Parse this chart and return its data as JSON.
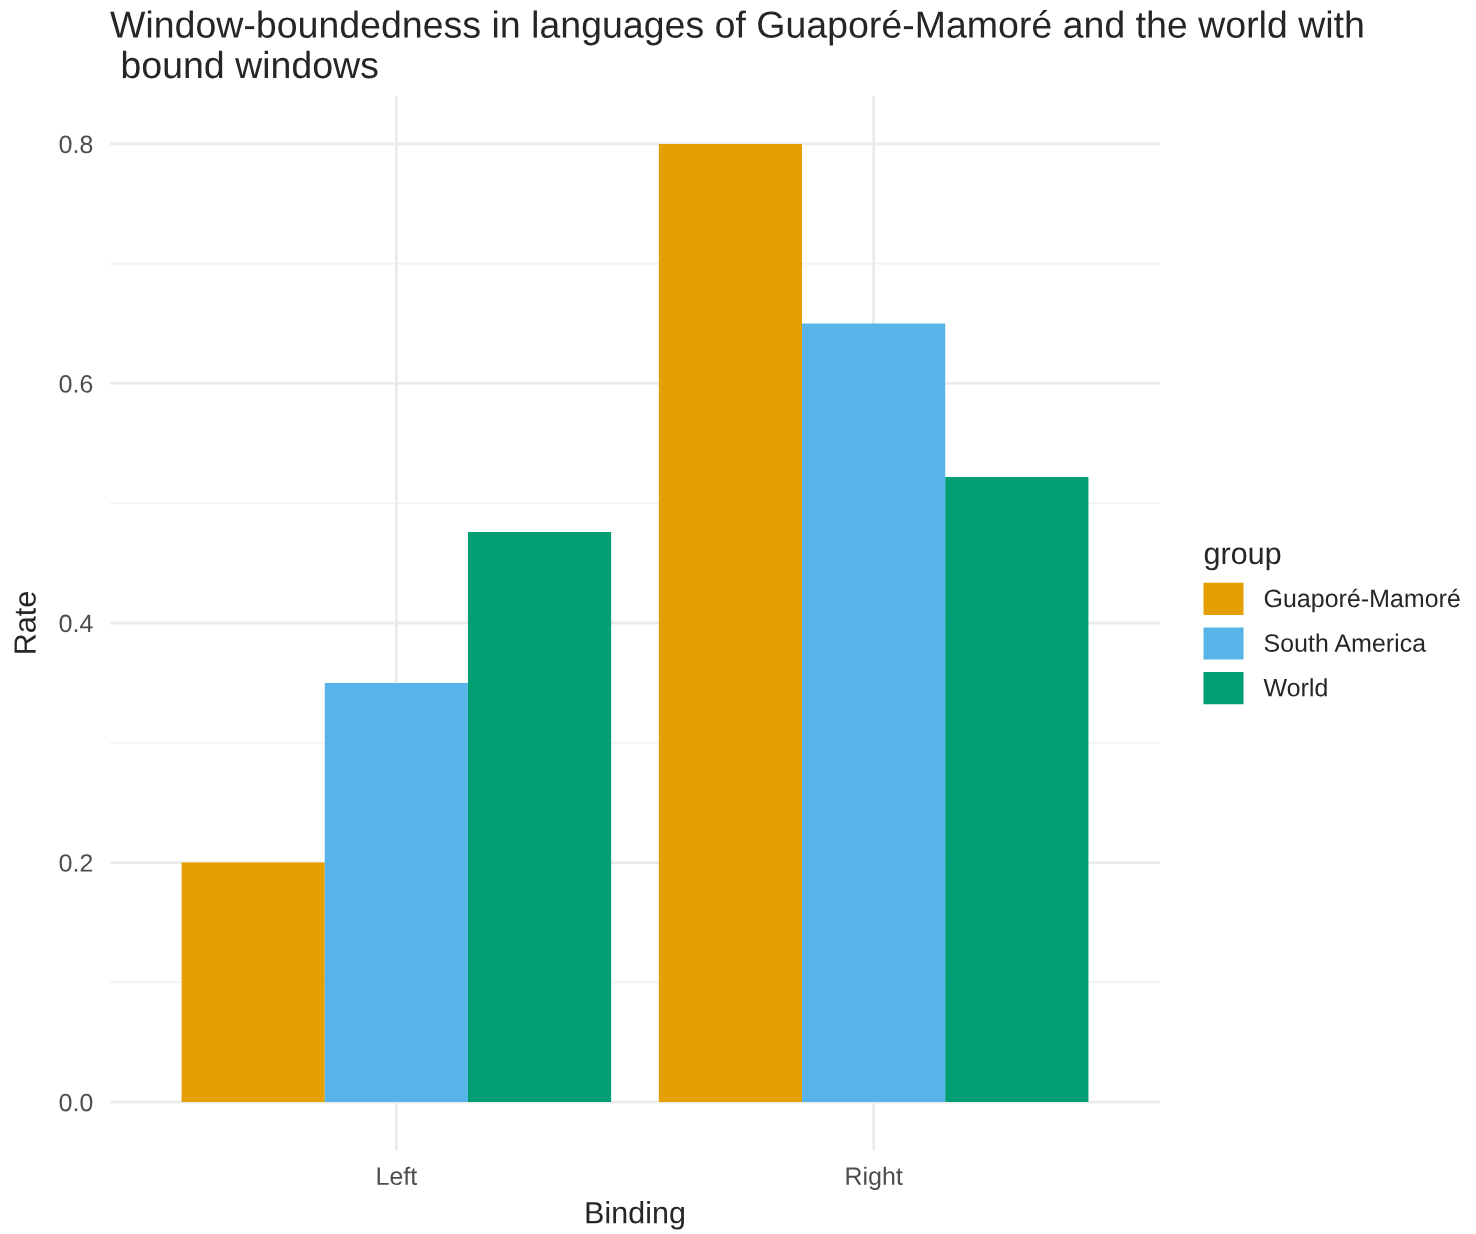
{
  "chart_data": {
    "type": "bar",
    "title": "Window-boundedness in languages of Guaporé-Mamoré and the world with\n bound windows",
    "xlabel": "Binding",
    "ylabel": "Rate",
    "legend_title": "group",
    "categories": [
      "Left",
      "Right"
    ],
    "series": [
      {
        "name": "Guaporé-Mamoré",
        "color": "#e69f00",
        "values": [
          0.2,
          0.8
        ]
      },
      {
        "name": "South America",
        "color": "#56b4e9",
        "values": [
          0.35,
          0.65
        ]
      },
      {
        "name": "World",
        "color": "#009e73",
        "values": [
          0.476,
          0.522
        ]
      }
    ],
    "ylim": [
      -0.04,
      0.84
    ],
    "yticks": [
      {
        "value": 0,
        "label": "0.0"
      },
      0.2,
      0.4,
      0.6,
      0.8
    ],
    "grid": true,
    "legend": "right"
  }
}
